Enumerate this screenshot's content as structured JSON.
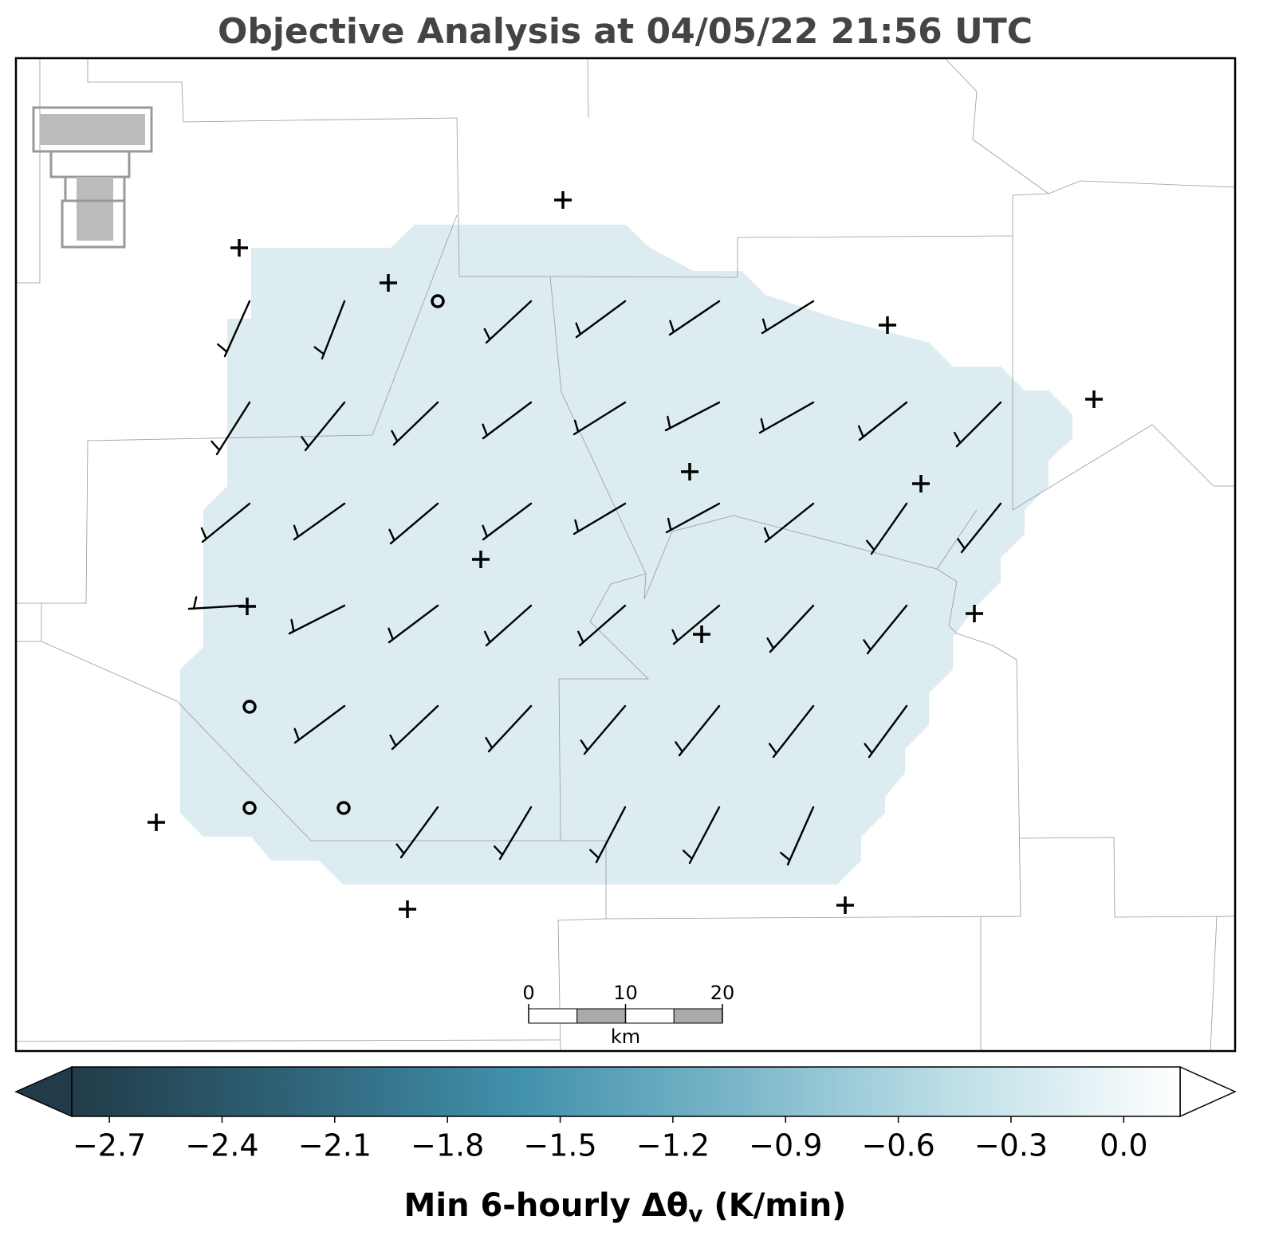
{
  "title": "Objective Analysis at 04/05/22 21:56 UTC",
  "colorbar": {
    "label": "Min 6-hourly Δθ",
    "label_subscript": "v",
    "label_units": "(K/min)",
    "lim": [
      -2.8,
      0.15
    ],
    "ticks": [
      {
        "value": -2.7,
        "label": "−2.7"
      },
      {
        "value": -2.4,
        "label": "−2.4"
      },
      {
        "value": -2.1,
        "label": "−2.1"
      },
      {
        "value": -1.8,
        "label": "−1.8"
      },
      {
        "value": -1.5,
        "label": "−1.5"
      },
      {
        "value": -1.2,
        "label": "−1.2"
      },
      {
        "value": -0.9,
        "label": "−0.9"
      },
      {
        "value": -0.6,
        "label": "−0.6"
      },
      {
        "value": -0.3,
        "label": "−0.3"
      },
      {
        "value": 0,
        "label": "0.0"
      }
    ],
    "colors": [
      "#213c48",
      "#2f6378",
      "#4190ab",
      "#7ab6c9",
      "#bfe0e8",
      "#ffffff"
    ]
  },
  "scale_bar": {
    "ticks": [
      0,
      10,
      20
    ],
    "unit": "km"
  }
}
